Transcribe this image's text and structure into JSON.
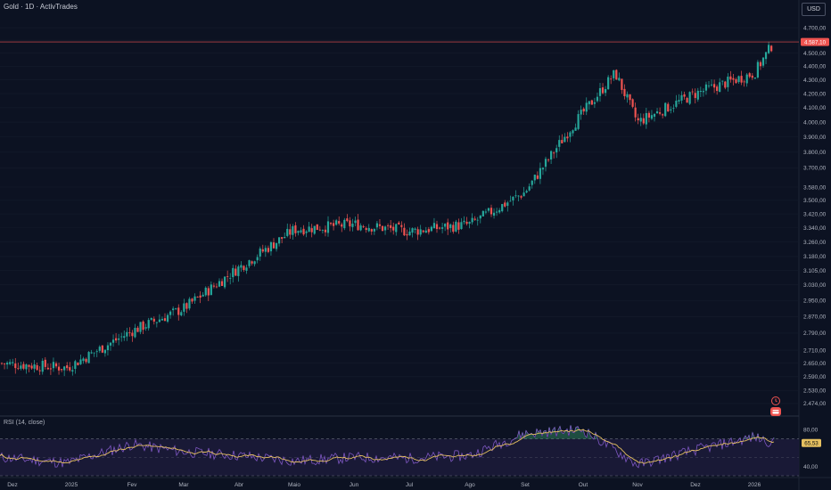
{
  "header": {
    "title": "Gold · 1D · ActivTrades",
    "currency": "USD"
  },
  "icons": [
    "clock-alert-icon",
    "calendar-flag-icon"
  ],
  "colors": {
    "background": "#0c1222",
    "up": "#26a69a",
    "down": "#ef5350",
    "price_line": "#ef5350",
    "rsi_line": "#7e57c2",
    "rsi_ma": "#e6c060",
    "rsi_band": "#1f1c3c"
  },
  "chart_data": [
    {
      "type": "candlestick",
      "symbol": "Gold",
      "interval": "1D",
      "source": "ActivTrades",
      "log_scale": true,
      "y_ticks": [
        "4.700,00",
        "4.600,00",
        "4.500,00",
        "4.400,00",
        "4.300,00",
        "4.200,00",
        "4.100,00",
        "4.000,00",
        "3.900,00",
        "3.800,00",
        "3.700,00",
        "3.580,00",
        "3.500,00",
        "3.420,00",
        "3.340,00",
        "3.260,00",
        "3.180,00",
        "3.105,00",
        "3.030,00",
        "2.950,00",
        "2.870,00",
        "2.790,00",
        "2.710,00",
        "2.650,00",
        "2.590,00",
        "2.530,00",
        "2.474,00"
      ],
      "x_ticks": [
        "Dez",
        "2025",
        "Fev",
        "Mar",
        "Abr",
        "Maio",
        "Jun",
        "Jul",
        "Ago",
        "Set",
        "Out",
        "Nov",
        "Dez",
        "2026"
      ],
      "last_price": "4.587,10",
      "ylim": [
        2440,
        4780
      ],
      "keypoints": [
        {
          "date": "Dez",
          "close": 2650
        },
        {
          "date": "2025",
          "close": 2630
        },
        {
          "date": "Fev",
          "close": 2800
        },
        {
          "date": "Mar",
          "close": 2910
        },
        {
          "date": "Abr",
          "close": 3120
        },
        {
          "date": "Maio",
          "close": 3330
        },
        {
          "date": "Jun",
          "close": 3360
        },
        {
          "date": "Jul",
          "close": 3320
        },
        {
          "date": "Ago",
          "close": 3360
        },
        {
          "date": "Set",
          "close": 3550
        },
        {
          "date": "Out",
          "close": 3960
        },
        {
          "date": "Out (peak)",
          "close": 4350
        },
        {
          "date": "Nov",
          "close": 4000
        },
        {
          "date": "Dez",
          "close": 4200
        },
        {
          "date": "2026",
          "close": 4350
        },
        {
          "date": "last",
          "close": 4587.1
        }
      ]
    },
    {
      "type": "line",
      "name": "RSI (14, close)",
      "ylim": [
        30,
        90
      ],
      "y_ticks": [
        "80,00",
        "40,00"
      ],
      "bands": [
        70,
        30
      ],
      "last_value": "65,53",
      "keypoints": [
        {
          "date": "Dez",
          "value": 50
        },
        {
          "date": "2025",
          "value": 44
        },
        {
          "date": "Fev",
          "value": 64
        },
        {
          "date": "Mar",
          "value": 56
        },
        {
          "date": "Abr",
          "value": 52
        },
        {
          "date": "Maio",
          "value": 46
        },
        {
          "date": "Jun",
          "value": 50
        },
        {
          "date": "Jul",
          "value": 49
        },
        {
          "date": "Ago",
          "value": 52
        },
        {
          "date": "Set",
          "value": 76
        },
        {
          "date": "Out",
          "value": 80
        },
        {
          "date": "Nov",
          "value": 42
        },
        {
          "date": "Dez",
          "value": 58
        },
        {
          "date": "2026",
          "value": 72
        },
        {
          "date": "last",
          "value": 65.53
        }
      ]
    }
  ]
}
